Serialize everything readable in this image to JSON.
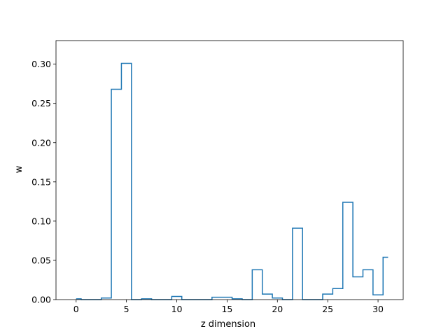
{
  "chart_data": {
    "type": "step",
    "xlabel": "z dimension",
    "ylabel": "w",
    "xlim": [
      -2,
      32.5
    ],
    "ylim": [
      0,
      0.33
    ],
    "xticks": [
      0,
      5,
      10,
      15,
      20,
      25,
      30
    ],
    "yticks": [
      0.0,
      0.05,
      0.1,
      0.15,
      0.2,
      0.25,
      0.3
    ],
    "xtick_labels": [
      "0",
      "5",
      "10",
      "15",
      "20",
      "25",
      "30"
    ],
    "ytick_labels": [
      "0.00",
      "0.05",
      "0.10",
      "0.15",
      "0.20",
      "0.25",
      "0.30"
    ],
    "step_where": "mid",
    "line_color": "#1f77b4",
    "grid": false,
    "series": [
      {
        "x": [
          0,
          1,
          2,
          3,
          4,
          5,
          6,
          7,
          8,
          9,
          10,
          11,
          12,
          13,
          14,
          15,
          16,
          17,
          18,
          19,
          20,
          21,
          22,
          23,
          24,
          25,
          26,
          27,
          28,
          29,
          30,
          31
        ],
        "values": [
          0.001,
          0.0,
          0.0,
          0.002,
          0.268,
          0.301,
          0.0,
          0.001,
          0.0,
          0.0,
          0.004,
          0.0,
          0.0,
          0.0,
          0.003,
          0.003,
          0.001,
          0.0,
          0.038,
          0.007,
          0.002,
          0.0,
          0.091,
          0.0,
          0.0,
          0.007,
          0.014,
          0.124,
          0.029,
          0.038,
          0.006,
          0.054
        ]
      }
    ]
  }
}
